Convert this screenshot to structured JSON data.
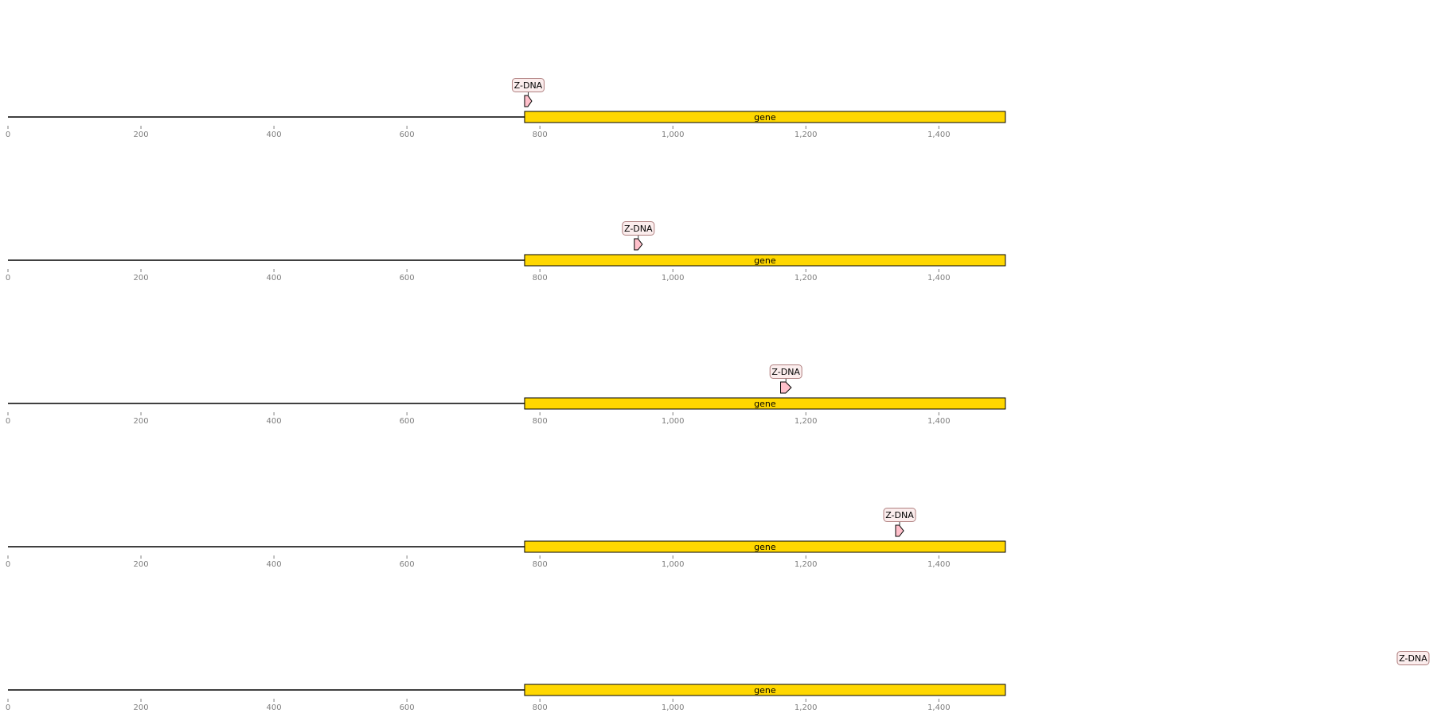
{
  "colors": {
    "gene_fill": "#ffd700",
    "zdna_fill": "#ffc0cb",
    "label_box_fill": "#fbeded",
    "label_box_stroke": "#b08080",
    "axis_color": "#7f7f7f",
    "line_color": "#000000"
  },
  "axis": {
    "min": 0,
    "max": 1500,
    "tick_values": [
      0,
      200,
      400,
      600,
      800,
      1000,
      1200,
      1400
    ],
    "tick_labels": [
      "0",
      "200",
      "400",
      "600",
      "800",
      "1,000",
      "1,200",
      "1,400"
    ]
  },
  "tracks": [
    {
      "gene": {
        "start": 777,
        "end": 1500,
        "label": "gene"
      },
      "zdna": {
        "start": 777,
        "end": 786,
        "label": "Z-DNA",
        "strand": 1
      }
    },
    {
      "gene": {
        "start": 777,
        "end": 1500,
        "label": "gene"
      },
      "zdna": {
        "start": 942,
        "end": 954,
        "label": "Z-DNA",
        "strand": 1
      }
    },
    {
      "gene": {
        "start": 777,
        "end": 1500,
        "label": "gene"
      },
      "zdna": {
        "start": 1162,
        "end": 1178,
        "label": "Z-DNA",
        "strand": 1
      }
    },
    {
      "gene": {
        "start": 777,
        "end": 1500,
        "label": "gene"
      },
      "zdna": {
        "start": 1335,
        "end": 1347,
        "label": "Z-DNA",
        "strand": 1
      }
    },
    {
      "gene": {
        "start": 777,
        "end": 1500,
        "label": "gene"
      },
      "zdna": {
        "start": 1500,
        "end": 1500,
        "label": "Z-DNA",
        "strand": 1
      }
    }
  ]
}
